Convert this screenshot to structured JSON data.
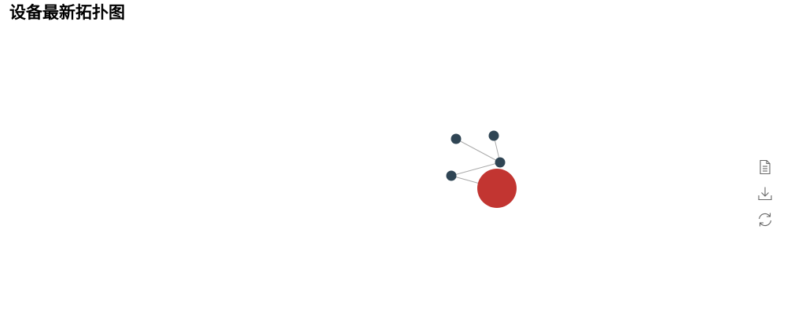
{
  "page": {
    "title": "设备最新拓扑图"
  },
  "graph": {
    "link_color": "#aaaaaa",
    "nodes": [
      {
        "id": "center",
        "role": "hub",
        "color": "#c23531"
      },
      {
        "id": "n1",
        "role": "device",
        "color": "#2f4554"
      },
      {
        "id": "n2",
        "role": "device",
        "color": "#2f4554"
      },
      {
        "id": "n3",
        "role": "device",
        "color": "#2f4554"
      },
      {
        "id": "n4",
        "role": "device",
        "color": "#2f4554"
      }
    ],
    "links": [
      {
        "source": "n4",
        "target": "center"
      },
      {
        "source": "n4",
        "target": "n3"
      },
      {
        "source": "n1",
        "target": "n3"
      },
      {
        "source": "n2",
        "target": "n3"
      }
    ]
  },
  "toolbox": {
    "items": [
      {
        "name": "data-view",
        "icon": "document-icon"
      },
      {
        "name": "save-as-image",
        "icon": "download-icon"
      },
      {
        "name": "restore",
        "icon": "refresh-icon"
      }
    ],
    "icon_color": "#666666"
  }
}
